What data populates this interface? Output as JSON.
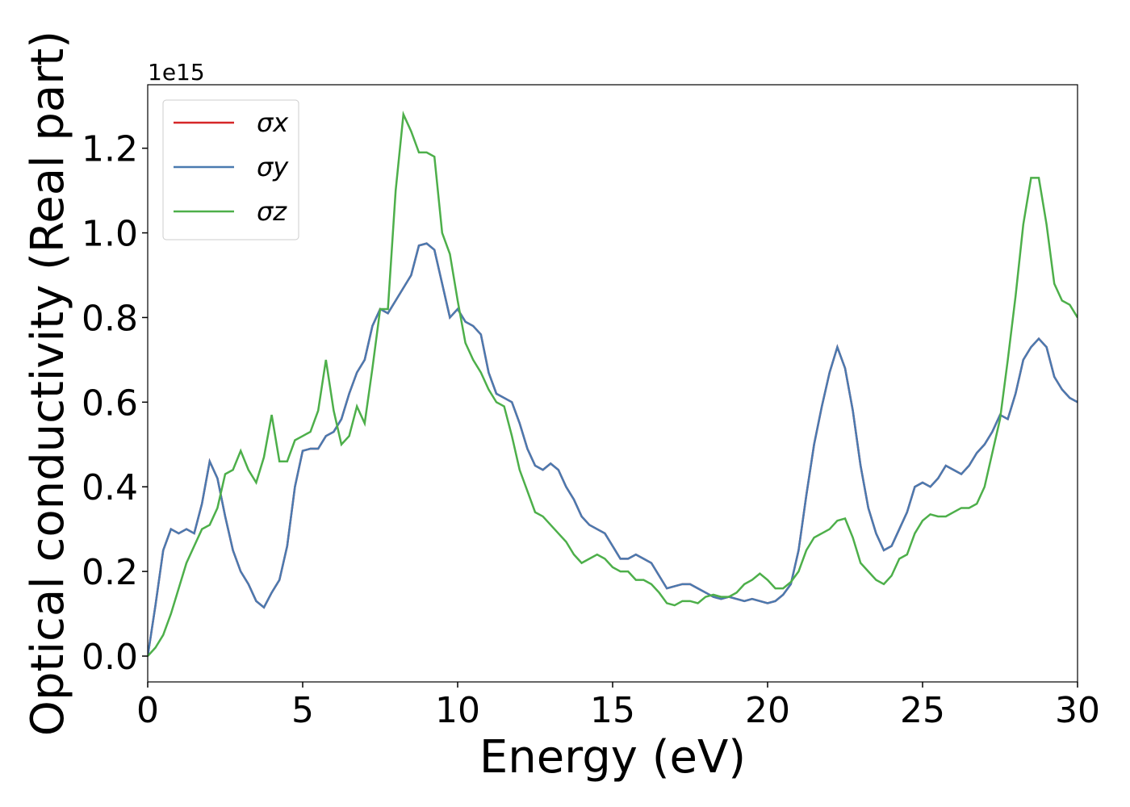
{
  "chart_data": {
    "type": "line",
    "xlabel": "Energy (eV)",
    "ylabel": "Optical conductivity (Real part)",
    "y_offset_label": "1e15",
    "xlim": [
      0,
      30
    ],
    "ylim": [
      -0.061,
      1.35
    ],
    "xticks": [
      0,
      5,
      10,
      15,
      20,
      25,
      30
    ],
    "yticks": [
      {
        "value": 0,
        "label": "0.0"
      },
      0.2,
      0.4,
      0.6,
      0.8,
      {
        "value": 1,
        "label": "1.0"
      },
      1.2
    ],
    "legend": "upper left",
    "x": [
      0,
      0.25,
      0.5,
      0.75,
      1,
      1.25,
      1.5,
      1.75,
      2,
      2.25,
      2.5,
      2.75,
      3,
      3.25,
      3.5,
      3.75,
      4,
      4.25,
      4.5,
      4.75,
      5,
      5.25,
      5.5,
      5.75,
      6,
      6.25,
      6.5,
      6.75,
      7,
      7.25,
      7.5,
      7.75,
      8,
      8.25,
      8.5,
      8.75,
      9,
      9.25,
      9.5,
      9.75,
      10,
      10.25,
      10.5,
      10.75,
      11,
      11.25,
      11.5,
      11.75,
      12,
      12.25,
      12.5,
      12.75,
      13,
      13.25,
      13.5,
      13.75,
      14,
      14.25,
      14.5,
      14.75,
      15,
      15.25,
      15.5,
      15.75,
      16,
      16.25,
      16.5,
      16.75,
      17,
      17.25,
      17.5,
      17.75,
      18,
      18.25,
      18.5,
      18.75,
      19,
      19.25,
      19.5,
      19.75,
      20,
      20.25,
      20.5,
      20.75,
      21,
      21.25,
      21.5,
      21.75,
      22,
      22.25,
      22.5,
      22.75,
      23,
      23.25,
      23.5,
      23.75,
      24,
      24.25,
      24.5,
      24.75,
      25,
      25.25,
      25.5,
      25.75,
      26,
      26.25,
      26.5,
      26.75,
      27,
      27.25,
      27.5,
      27.75,
      28,
      28.25,
      28.5,
      28.75,
      29,
      29.25,
      29.5,
      29.75,
      30
    ],
    "series": [
      {
        "name": "σx",
        "color": "#d62728",
        "values": [
          0,
          0.12,
          0.25,
          0.3,
          0.29,
          0.3,
          0.29,
          0.36,
          0.46,
          0.42,
          0.33,
          0.25,
          0.2,
          0.17,
          0.13,
          0.115,
          0.15,
          0.18,
          0.26,
          0.4,
          0.485,
          0.49,
          0.49,
          0.52,
          0.53,
          0.56,
          0.62,
          0.67,
          0.7,
          0.78,
          0.82,
          0.81,
          0.84,
          0.87,
          0.9,
          0.97,
          0.975,
          0.96,
          0.88,
          0.8,
          0.82,
          0.79,
          0.78,
          0.76,
          0.67,
          0.62,
          0.61,
          0.6,
          0.55,
          0.49,
          0.45,
          0.44,
          0.455,
          0.44,
          0.4,
          0.37,
          0.33,
          0.31,
          0.3,
          0.29,
          0.26,
          0.23,
          0.23,
          0.24,
          0.23,
          0.22,
          0.19,
          0.16,
          0.165,
          0.17,
          0.17,
          0.16,
          0.15,
          0.14,
          0.135,
          0.14,
          0.135,
          0.13,
          0.135,
          0.13,
          0.125,
          0.13,
          0.145,
          0.17,
          0.25,
          0.38,
          0.5,
          0.59,
          0.67,
          0.73,
          0.68,
          0.58,
          0.45,
          0.35,
          0.29,
          0.25,
          0.26,
          0.3,
          0.34,
          0.4,
          0.41,
          0.4,
          0.42,
          0.45,
          0.44,
          0.43,
          0.45,
          0.48,
          0.5,
          0.53,
          0.57,
          0.56,
          0.62,
          0.7,
          0.73,
          0.75,
          0.73,
          0.66,
          0.63,
          0.61,
          0.6
        ]
      },
      {
        "name": "σy",
        "color": "#4a7ab0",
        "values": [
          0,
          0.12,
          0.25,
          0.3,
          0.29,
          0.3,
          0.29,
          0.36,
          0.46,
          0.42,
          0.33,
          0.25,
          0.2,
          0.17,
          0.13,
          0.115,
          0.15,
          0.18,
          0.26,
          0.4,
          0.485,
          0.49,
          0.49,
          0.52,
          0.53,
          0.56,
          0.62,
          0.67,
          0.7,
          0.78,
          0.82,
          0.81,
          0.84,
          0.87,
          0.9,
          0.97,
          0.975,
          0.96,
          0.88,
          0.8,
          0.82,
          0.79,
          0.78,
          0.76,
          0.67,
          0.62,
          0.61,
          0.6,
          0.55,
          0.49,
          0.45,
          0.44,
          0.455,
          0.44,
          0.4,
          0.37,
          0.33,
          0.31,
          0.3,
          0.29,
          0.26,
          0.23,
          0.23,
          0.24,
          0.23,
          0.22,
          0.19,
          0.16,
          0.165,
          0.17,
          0.17,
          0.16,
          0.15,
          0.14,
          0.135,
          0.14,
          0.135,
          0.13,
          0.135,
          0.13,
          0.125,
          0.13,
          0.145,
          0.17,
          0.25,
          0.38,
          0.5,
          0.59,
          0.67,
          0.73,
          0.68,
          0.58,
          0.45,
          0.35,
          0.29,
          0.25,
          0.26,
          0.3,
          0.34,
          0.4,
          0.41,
          0.4,
          0.42,
          0.45,
          0.44,
          0.43,
          0.45,
          0.48,
          0.5,
          0.53,
          0.57,
          0.56,
          0.62,
          0.7,
          0.73,
          0.75,
          0.73,
          0.66,
          0.63,
          0.61,
          0.6
        ]
      },
      {
        "name": "σz",
        "color": "#4daf4a",
        "values": [
          0,
          0.02,
          0.05,
          0.1,
          0.16,
          0.22,
          0.26,
          0.3,
          0.31,
          0.35,
          0.43,
          0.44,
          0.485,
          0.44,
          0.41,
          0.47,
          0.57,
          0.46,
          0.46,
          0.51,
          0.52,
          0.53,
          0.58,
          0.7,
          0.58,
          0.5,
          0.52,
          0.59,
          0.55,
          0.68,
          0.82,
          0.82,
          1.1,
          1.28,
          1.24,
          1.19,
          1.19,
          1.18,
          1,
          0.95,
          0.84,
          0.74,
          0.7,
          0.67,
          0.63,
          0.6,
          0.59,
          0.52,
          0.44,
          0.39,
          0.34,
          0.33,
          0.31,
          0.29,
          0.27,
          0.24,
          0.22,
          0.23,
          0.24,
          0.23,
          0.21,
          0.2,
          0.2,
          0.18,
          0.18,
          0.17,
          0.15,
          0.125,
          0.12,
          0.13,
          0.13,
          0.125,
          0.14,
          0.145,
          0.14,
          0.14,
          0.15,
          0.17,
          0.18,
          0.195,
          0.18,
          0.16,
          0.16,
          0.175,
          0.2,
          0.25,
          0.28,
          0.29,
          0.3,
          0.32,
          0.325,
          0.28,
          0.22,
          0.2,
          0.18,
          0.17,
          0.19,
          0.23,
          0.24,
          0.29,
          0.32,
          0.335,
          0.33,
          0.33,
          0.34,
          0.35,
          0.35,
          0.36,
          0.4,
          0.48,
          0.56,
          0.7,
          0.85,
          1.02,
          1.13,
          1.13,
          1.02,
          0.88,
          0.84,
          0.83,
          0.8
        ]
      }
    ]
  }
}
